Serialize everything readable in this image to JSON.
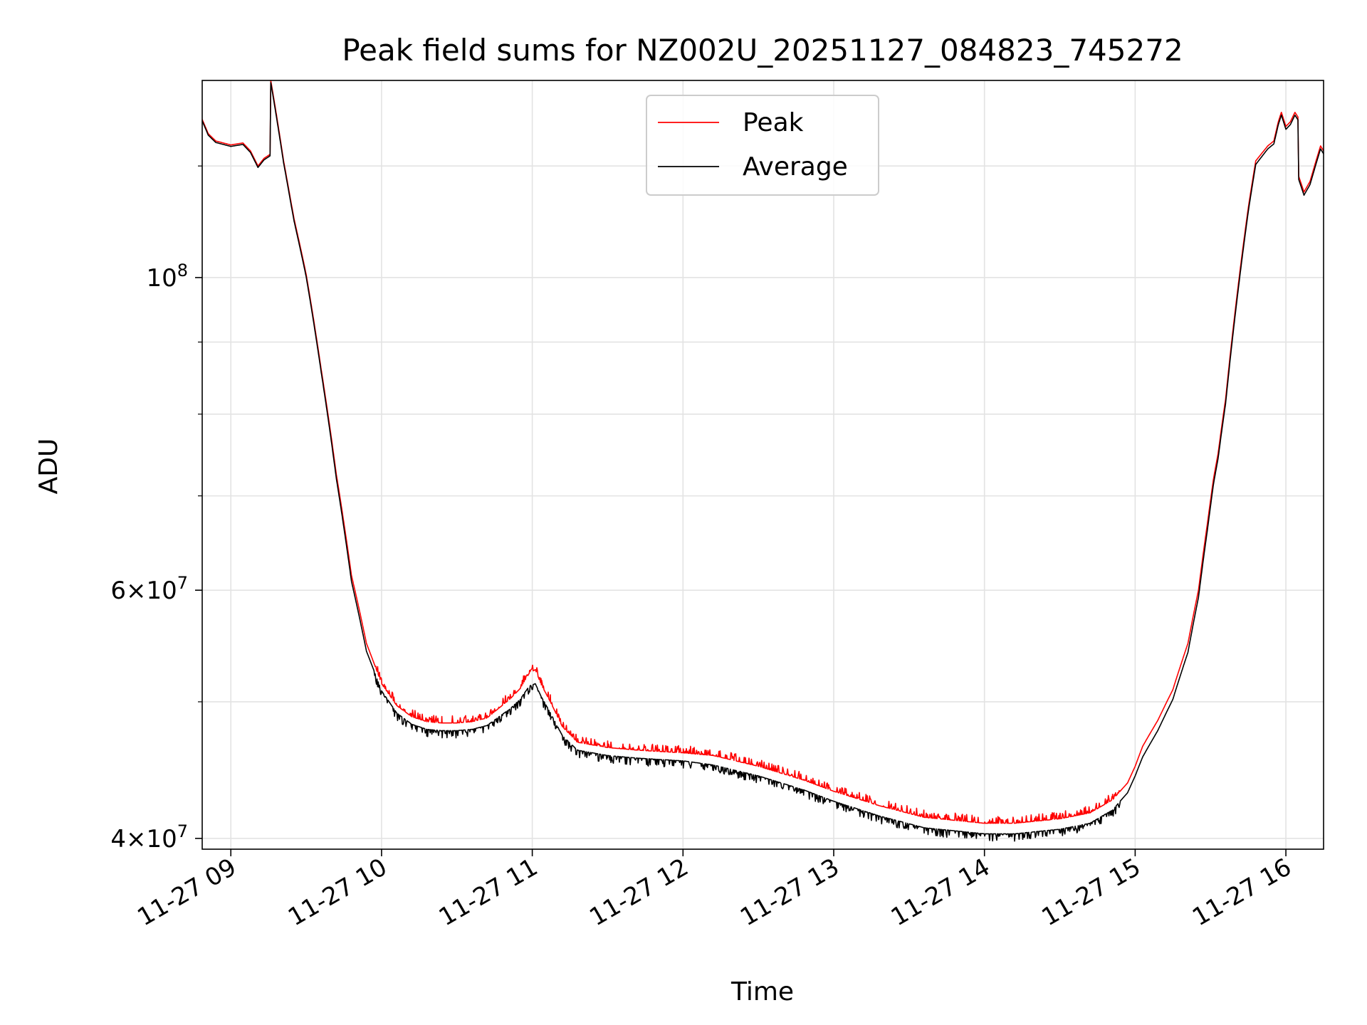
{
  "chart_data": {
    "type": "line",
    "title": "Peak field sums for NZ002U_20251127_084823_745272",
    "xlabel": "Time",
    "ylabel": "ADU",
    "yscale": "log",
    "grid": true,
    "legend_position": "top-center",
    "x_unit": "hours since 2025-11-27 00:00",
    "xlim": [
      8.81,
      16.25
    ],
    "ylim": [
      39300000,
      138000000
    ],
    "x_ticks": [
      {
        "value": 9,
        "label": "11-27 09"
      },
      {
        "value": 10,
        "label": "11-27 10"
      },
      {
        "value": 11,
        "label": "11-27 11"
      },
      {
        "value": 12,
        "label": "11-27 12"
      },
      {
        "value": 13,
        "label": "11-27 13"
      },
      {
        "value": 14,
        "label": "11-27 14"
      },
      {
        "value": 15,
        "label": "11-27 15"
      },
      {
        "value": 16,
        "label": "11-27 16"
      }
    ],
    "y_major_ticks": [
      {
        "value": 40000000,
        "mantissa": "4",
        "exponent": "7"
      },
      {
        "value": 60000000,
        "mantissa": "6",
        "exponent": "7"
      },
      {
        "value": 100000000,
        "mantissa": "",
        "exponent": "8"
      }
    ],
    "y_minor_ticks": [
      50000000,
      70000000,
      80000000,
      90000000,
      120000000
    ],
    "series": [
      {
        "name": "Peak",
        "color": "#ff0000",
        "noise": {
          "from": 9.95,
          "to": 14.9,
          "amplitude": 0.012,
          "direction": "up"
        },
        "points": [
          [
            8.81,
            129500000
          ],
          [
            8.85,
            126500000
          ],
          [
            8.9,
            125000000
          ],
          [
            9.0,
            124200000
          ],
          [
            9.08,
            124600000
          ],
          [
            9.13,
            123000000
          ],
          [
            9.18,
            120000000
          ],
          [
            9.22,
            121500000
          ],
          [
            9.26,
            122300000
          ],
          [
            9.265,
            138000000
          ],
          [
            9.3,
            131000000
          ],
          [
            9.35,
            121000000
          ],
          [
            9.4,
            113000000
          ],
          [
            9.42,
            110000000
          ],
          [
            9.5,
            100500000
          ],
          [
            9.6,
            86000000
          ],
          [
            9.7,
            72500000
          ],
          [
            9.8,
            61500000
          ],
          [
            9.9,
            55000000
          ],
          [
            10.0,
            51500000
          ],
          [
            10.1,
            49700000
          ],
          [
            10.2,
            48800000
          ],
          [
            10.3,
            48400000
          ],
          [
            10.4,
            48300000
          ],
          [
            10.5,
            48300000
          ],
          [
            10.6,
            48400000
          ],
          [
            10.7,
            48700000
          ],
          [
            10.78,
            49500000
          ],
          [
            10.85,
            50200000
          ],
          [
            10.92,
            51100000
          ],
          [
            10.98,
            52400000
          ],
          [
            11.02,
            52700000
          ],
          [
            11.06,
            51400000
          ],
          [
            11.12,
            50000000
          ],
          [
            11.2,
            48000000
          ],
          [
            11.3,
            46800000
          ],
          [
            11.5,
            46400000
          ],
          [
            11.7,
            46200000
          ],
          [
            12.0,
            46000000
          ],
          [
            12.2,
            45800000
          ],
          [
            12.5,
            45000000
          ],
          [
            12.8,
            44000000
          ],
          [
            13.0,
            43200000
          ],
          [
            13.3,
            42200000
          ],
          [
            13.6,
            41400000
          ],
          [
            14.0,
            41000000
          ],
          [
            14.2,
            41000000
          ],
          [
            14.5,
            41300000
          ],
          [
            14.7,
            41700000
          ],
          [
            14.85,
            42600000
          ],
          [
            14.95,
            43800000
          ],
          [
            15.0,
            45000000
          ],
          [
            15.05,
            46500000
          ],
          [
            15.15,
            48500000
          ],
          [
            15.25,
            51000000
          ],
          [
            15.3,
            53000000
          ],
          [
            15.35,
            55000000
          ],
          [
            15.42,
            60000000
          ],
          [
            15.48,
            67000000
          ],
          [
            15.52,
            72000000
          ],
          [
            15.55,
            75000000
          ],
          [
            15.6,
            82000000
          ],
          [
            15.7,
            102000000
          ],
          [
            15.75,
            112000000
          ],
          [
            15.8,
            121000000
          ],
          [
            15.88,
            124000000
          ],
          [
            15.92,
            125000000
          ],
          [
            15.95,
            129000000
          ],
          [
            15.97,
            131000000
          ],
          [
            16.0,
            128000000
          ],
          [
            16.03,
            129000000
          ],
          [
            16.06,
            131000000
          ],
          [
            16.08,
            130000000
          ],
          [
            16.085,
            118000000
          ],
          [
            16.12,
            115000000
          ],
          [
            16.16,
            117000000
          ],
          [
            16.2,
            121000000
          ],
          [
            16.23,
            124000000
          ],
          [
            16.25,
            123000000
          ]
        ]
      },
      {
        "name": "Average",
        "color": "#000000",
        "noise": {
          "from": 9.95,
          "to": 14.9,
          "amplitude": 0.012,
          "direction": "down"
        },
        "points": [
          [
            8.81,
            129200000
          ],
          [
            8.85,
            126200000
          ],
          [
            8.9,
            124700000
          ],
          [
            9.0,
            123900000
          ],
          [
            9.08,
            124300000
          ],
          [
            9.13,
            122700000
          ],
          [
            9.18,
            119700000
          ],
          [
            9.22,
            121200000
          ],
          [
            9.26,
            122000000
          ],
          [
            9.265,
            137500000
          ],
          [
            9.3,
            130500000
          ],
          [
            9.35,
            120600000
          ],
          [
            9.4,
            112600000
          ],
          [
            9.42,
            109600000
          ],
          [
            9.5,
            100100000
          ],
          [
            9.6,
            85600000
          ],
          [
            9.7,
            72000000
          ],
          [
            9.8,
            60900000
          ],
          [
            9.9,
            54300000
          ],
          [
            10.0,
            50900000
          ],
          [
            10.1,
            49100000
          ],
          [
            10.2,
            48200000
          ],
          [
            10.3,
            47800000
          ],
          [
            10.4,
            47700000
          ],
          [
            10.5,
            47700000
          ],
          [
            10.6,
            47800000
          ],
          [
            10.7,
            48100000
          ],
          [
            10.78,
            48800000
          ],
          [
            10.85,
            49400000
          ],
          [
            10.92,
            50200000
          ],
          [
            10.98,
            51300000
          ],
          [
            11.02,
            51500000
          ],
          [
            11.06,
            50400000
          ],
          [
            11.12,
            49100000
          ],
          [
            11.2,
            47300000
          ],
          [
            11.3,
            46200000
          ],
          [
            11.5,
            45800000
          ],
          [
            11.7,
            45600000
          ],
          [
            12.0,
            45400000
          ],
          [
            12.2,
            45100000
          ],
          [
            12.5,
            44300000
          ],
          [
            12.8,
            43300000
          ],
          [
            13.0,
            42500000
          ],
          [
            13.3,
            41500000
          ],
          [
            13.6,
            40700000
          ],
          [
            14.0,
            40300000
          ],
          [
            14.2,
            40300000
          ],
          [
            14.5,
            40600000
          ],
          [
            14.7,
            41000000
          ],
          [
            14.85,
            41900000
          ],
          [
            14.95,
            43100000
          ],
          [
            15.0,
            44300000
          ],
          [
            15.05,
            45700000
          ],
          [
            15.15,
            47700000
          ],
          [
            15.25,
            50200000
          ],
          [
            15.3,
            52200000
          ],
          [
            15.35,
            54200000
          ],
          [
            15.42,
            59300000
          ],
          [
            15.48,
            66300000
          ],
          [
            15.52,
            71400000
          ],
          [
            15.55,
            74400000
          ],
          [
            15.6,
            81400000
          ],
          [
            15.7,
            101300000
          ],
          [
            15.75,
            111300000
          ],
          [
            15.8,
            120300000
          ],
          [
            15.88,
            123400000
          ],
          [
            15.92,
            124400000
          ],
          [
            15.95,
            128400000
          ],
          [
            15.97,
            130400000
          ],
          [
            16.0,
            127400000
          ],
          [
            16.03,
            128400000
          ],
          [
            16.06,
            130400000
          ],
          [
            16.08,
            129400000
          ],
          [
            16.085,
            117400000
          ],
          [
            16.12,
            114400000
          ],
          [
            16.16,
            116400000
          ],
          [
            16.2,
            120400000
          ],
          [
            16.23,
            123400000
          ],
          [
            16.25,
            122400000
          ]
        ]
      }
    ]
  }
}
